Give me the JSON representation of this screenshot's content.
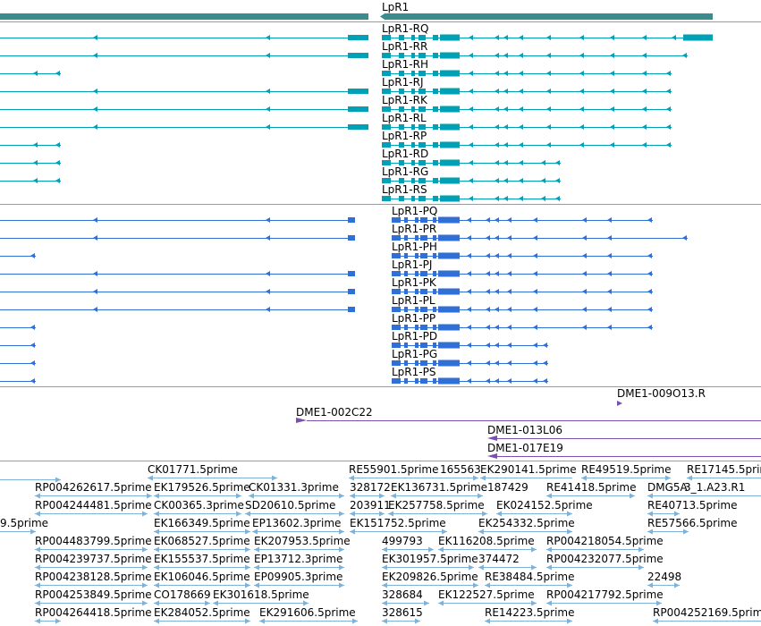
{
  "gene": {
    "name": "LpR1",
    "color": "#3a8c8f"
  },
  "colors": {
    "teal_transcript": "#00a0b6",
    "blue_transcript": "#2f6fd6",
    "clone": "#7b4fb0",
    "est": "#7fb2d6",
    "divider": "#9a9a9a"
  },
  "rna_transcripts": [
    {
      "label": "LpR1-RQ"
    },
    {
      "label": "LpR1-RR"
    },
    {
      "label": "LpR1-RH"
    },
    {
      "label": "LpR1-RJ"
    },
    {
      "label": "LpR1-RK"
    },
    {
      "label": "LpR1-RL"
    },
    {
      "label": "LpR1-RP"
    },
    {
      "label": "LpR1-RD"
    },
    {
      "label": "LpR1-RG"
    },
    {
      "label": "LpR1-RS"
    }
  ],
  "protein_transcripts": [
    {
      "label": "LpR1-PQ"
    },
    {
      "label": "LpR1-PR"
    },
    {
      "label": "LpR1-PH"
    },
    {
      "label": "LpR1-PJ"
    },
    {
      "label": "LpR1-PK"
    },
    {
      "label": "LpR1-PL"
    },
    {
      "label": "LpR1-PP"
    },
    {
      "label": "LpR1-PD"
    },
    {
      "label": "LpR1-PG"
    },
    {
      "label": "LpR1-PS"
    }
  ],
  "clones": [
    {
      "label": "DME1-009O13.R"
    },
    {
      "label": "DME1-002C22"
    },
    {
      "label": "DME1-013L06"
    },
    {
      "label": "DME1-017E19"
    }
  ],
  "est_labels": [
    "CK01771.5prime",
    "RE55901.5prime",
    "165563",
    "EK290141.5prime",
    "RE49519.5prime",
    "RE17145.5prime",
    "RP004262617.5prime",
    "EK179526.5prime",
    "CK01331.3prime",
    "328172",
    "EK13673",
    "1.5prime",
    "187429",
    "RE41418.5prime",
    "DMG5A",
    "3_1.A23.R1",
    "RP004244481.5prime",
    "CK00365.3prime",
    "SD20610.5prime",
    "203911",
    "EK257758.5prime",
    "EK024152.5prime",
    "RE40713.5prime",
    "9.5prime",
    "EK166349.5prime",
    "EP13602.3prime",
    "EK151752.5prime",
    "EK254332.5prime",
    "RE57566.5prime",
    "RP004483799.5prime",
    "EK068527.5prime",
    "EK207953.5prime",
    "499793",
    "EK116208.5prime",
    "RP004218054.5prime",
    "RP004239737.5prime",
    "EK155537.5prime",
    "EP13712.3prime",
    "EK301957.5prime",
    "374472",
    "RP004232077.5prime",
    "RP004238128.5prime",
    "EK106046.5prime",
    "EP09905.3prime",
    "EK209826.5prime",
    "RE38484.5prime",
    "22498",
    "RP004253849.5prime",
    "CO178669",
    "EK301618.5prime",
    "328684",
    "EK122527.5prime",
    "RP004217792.5prime",
    "RP004264418.5prime",
    "EK284052.5prime",
    "EK291606.5prime",
    "328615",
    "RE14223.5prime",
    "RP004252169.5prime"
  ]
}
